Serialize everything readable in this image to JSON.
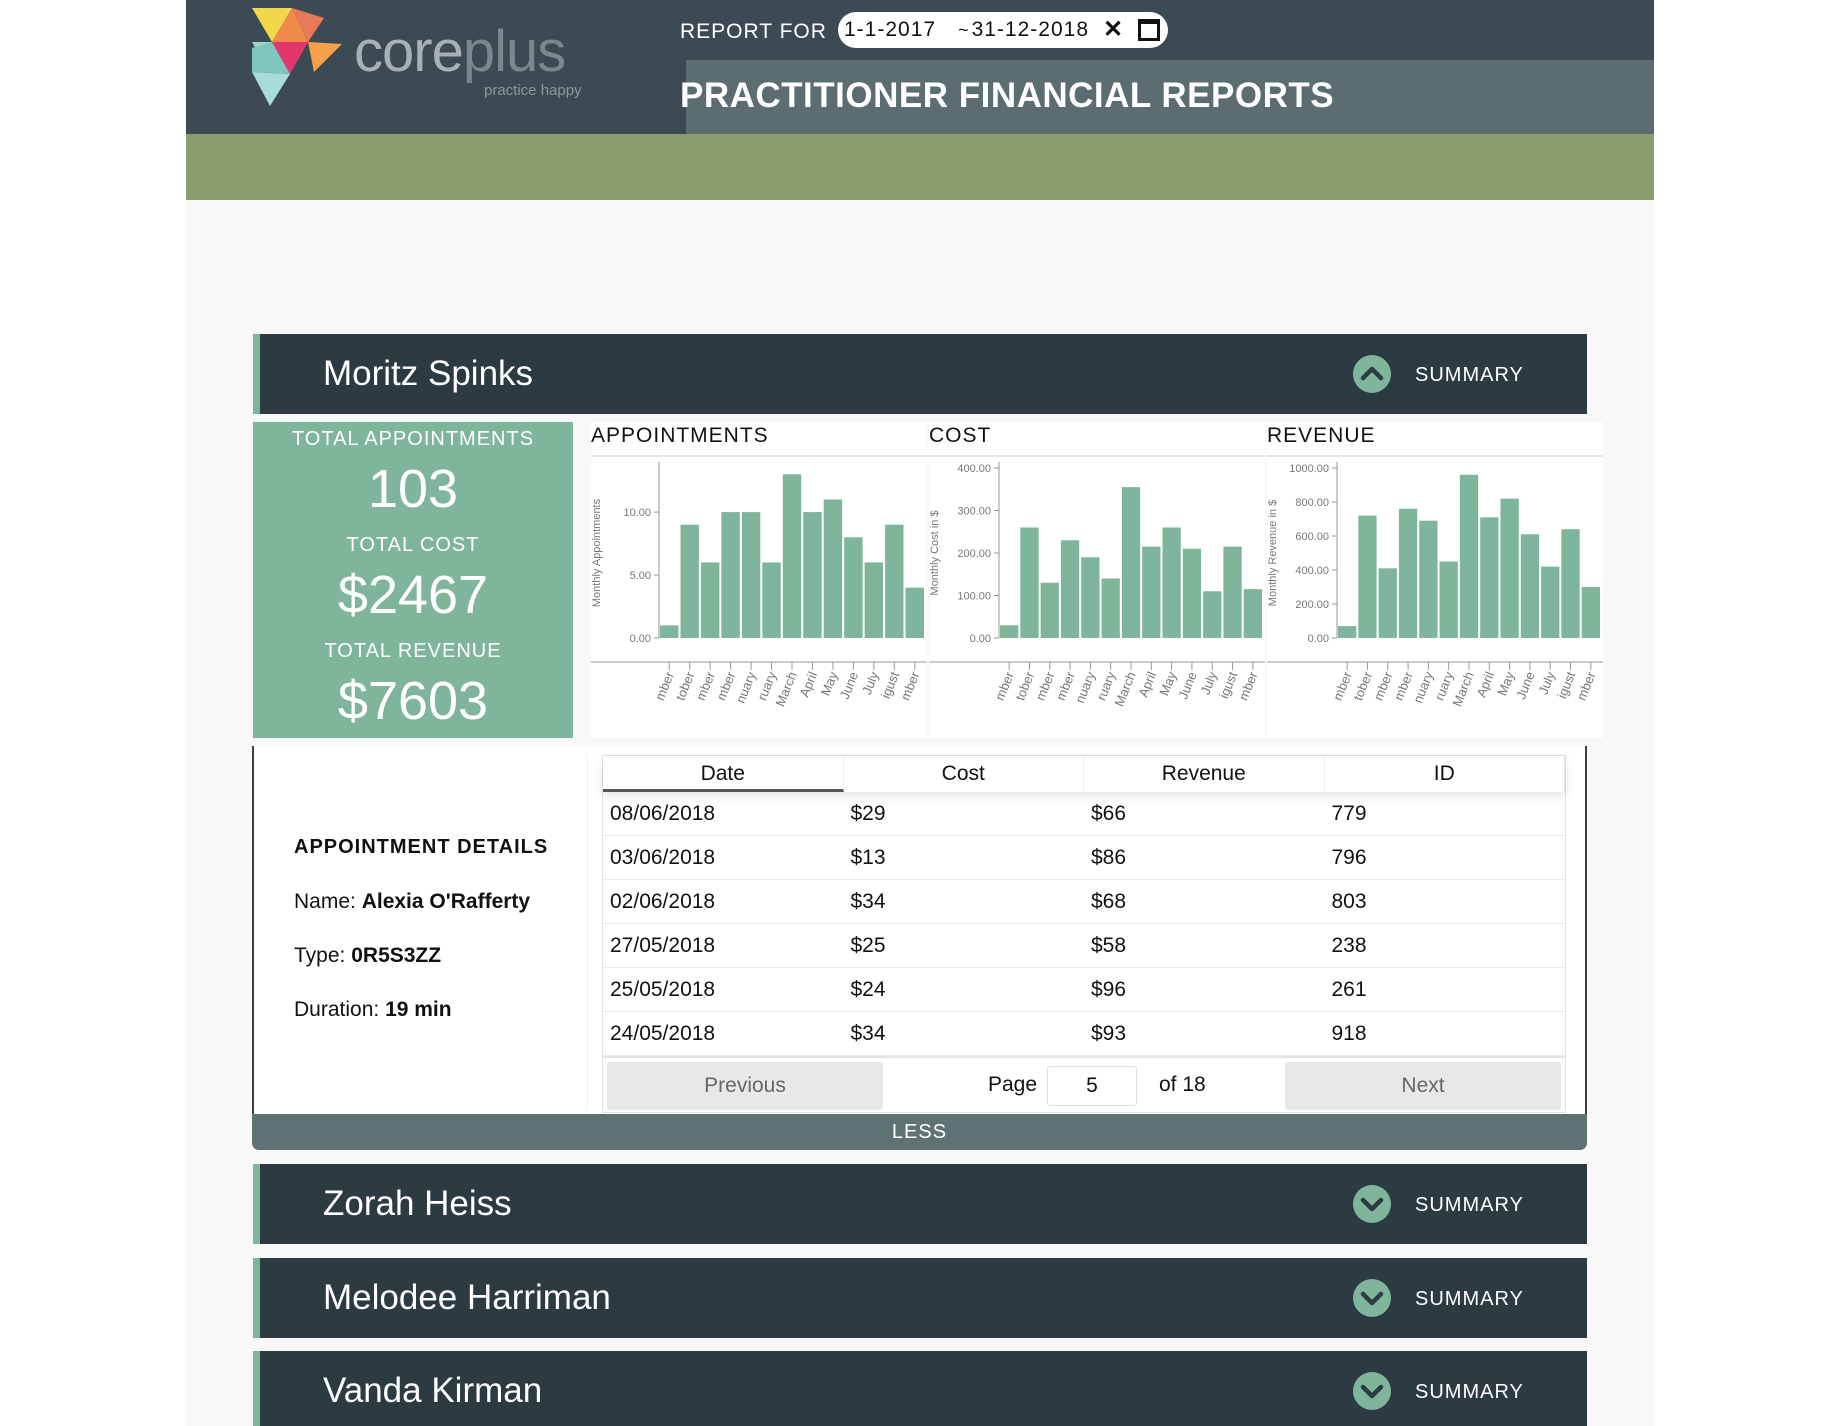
{
  "header": {
    "logo_core": "core",
    "logo_plus": "plus",
    "logo_tagline": "practice happy",
    "report_for_label": "REPORT FOR",
    "date_start": "1-1-2017",
    "date_separator": "~",
    "date_end": "31-12-2018",
    "title": "PRACTITIONER FINANCIAL REPORTS"
  },
  "practitioners": [
    {
      "name": "Moritz Spinks",
      "summary_label": "SUMMARY",
      "expanded": true
    },
    {
      "name": "Zorah Heiss",
      "summary_label": "SUMMARY",
      "expanded": false
    },
    {
      "name": "Melodee Harriman",
      "summary_label": "SUMMARY",
      "expanded": false
    },
    {
      "name": "Vanda Kirman",
      "summary_label": "SUMMARY",
      "expanded": false
    }
  ],
  "totals": {
    "appointments_label": "TOTAL APPOINTMENTS",
    "appointments_value": "103",
    "cost_label": "TOTAL COST",
    "cost_value": "$2467",
    "revenue_label": "TOTAL REVENUE",
    "revenue_value": "$7603"
  },
  "chart_data": [
    {
      "type": "bar",
      "title": "APPOINTMENTS",
      "ylabel": "Monthly Appointments",
      "yticks": [
        0,
        5,
        10
      ],
      "ytick_labels": [
        "0.00",
        "5.00",
        "10.00"
      ],
      "ylim": [
        0,
        13.5
      ],
      "categories": [
        "mber",
        "tober",
        "mber",
        "mber",
        "nuary",
        "ruary",
        "March",
        "April",
        "May",
        "June",
        "July",
        "igust",
        "mber"
      ],
      "values": [
        1,
        9,
        6,
        10,
        10,
        6,
        13,
        10,
        11,
        8,
        6,
        9,
        4
      ]
    },
    {
      "type": "bar",
      "title": "COST",
      "ylabel": "Monthly Cost in $",
      "yticks": [
        0,
        100,
        200,
        300,
        400
      ],
      "ytick_labels": [
        "0.00",
        "100.00",
        "200.00",
        "300.00",
        "400.00"
      ],
      "ylim": [
        0,
        400
      ],
      "categories": [
        "mber",
        "tober",
        "mber",
        "mber",
        "nuary",
        "ruary",
        "March",
        "April",
        "May",
        "June",
        "July",
        "igust",
        "mber"
      ],
      "values": [
        30,
        260,
        130,
        230,
        190,
        140,
        355,
        215,
        260,
        210,
        110,
        215,
        115
      ]
    },
    {
      "type": "bar",
      "title": "REVENUE",
      "ylabel": "Monthly Revenue in $",
      "yticks": [
        0,
        200,
        400,
        600,
        800,
        1000
      ],
      "ytick_labels": [
        "0.00",
        "200.00",
        "400.00",
        "600.00",
        "800.00",
        "1000.00"
      ],
      "ylim": [
        0,
        1000
      ],
      "categories": [
        "mber",
        "tober",
        "mber",
        "mber",
        "nuary",
        "ruary",
        "March",
        "April",
        "May",
        "June",
        "July",
        "igust",
        "mber"
      ],
      "values": [
        70,
        720,
        410,
        760,
        690,
        450,
        960,
        710,
        820,
        610,
        420,
        640,
        300
      ]
    }
  ],
  "appointment_details": {
    "title": "APPOINTMENT DETAILS",
    "name_label": "Name:",
    "name_value": "Alexia O'Rafferty",
    "type_label": "Type:",
    "type_value": "0R5S3ZZ",
    "duration_label": "Duration:",
    "duration_value": "19 min"
  },
  "table": {
    "columns": [
      "Date",
      "Cost",
      "Revenue",
      "ID"
    ],
    "rows": [
      [
        "08/06/2018",
        "$29",
        "$66",
        "779"
      ],
      [
        "03/06/2018",
        "$13",
        "$86",
        "796"
      ],
      [
        "02/06/2018",
        "$34",
        "$68",
        "803"
      ],
      [
        "27/05/2018",
        "$25",
        "$58",
        "238"
      ],
      [
        "25/05/2018",
        "$24",
        "$96",
        "261"
      ],
      [
        "24/05/2018",
        "$34",
        "$93",
        "918"
      ]
    ],
    "previous_label": "Previous",
    "page_label": "Page",
    "page_value": "5",
    "of_label": "of 18",
    "next_label": "Next"
  },
  "less_label": "LESS",
  "colors": {
    "header": "#3c4a53",
    "header_band": "#5b6d71",
    "olive": "#8c9b6c",
    "accent_green": "#7fb69b",
    "card_dark": "#2c3a42",
    "less_bar": "#5f7274"
  }
}
